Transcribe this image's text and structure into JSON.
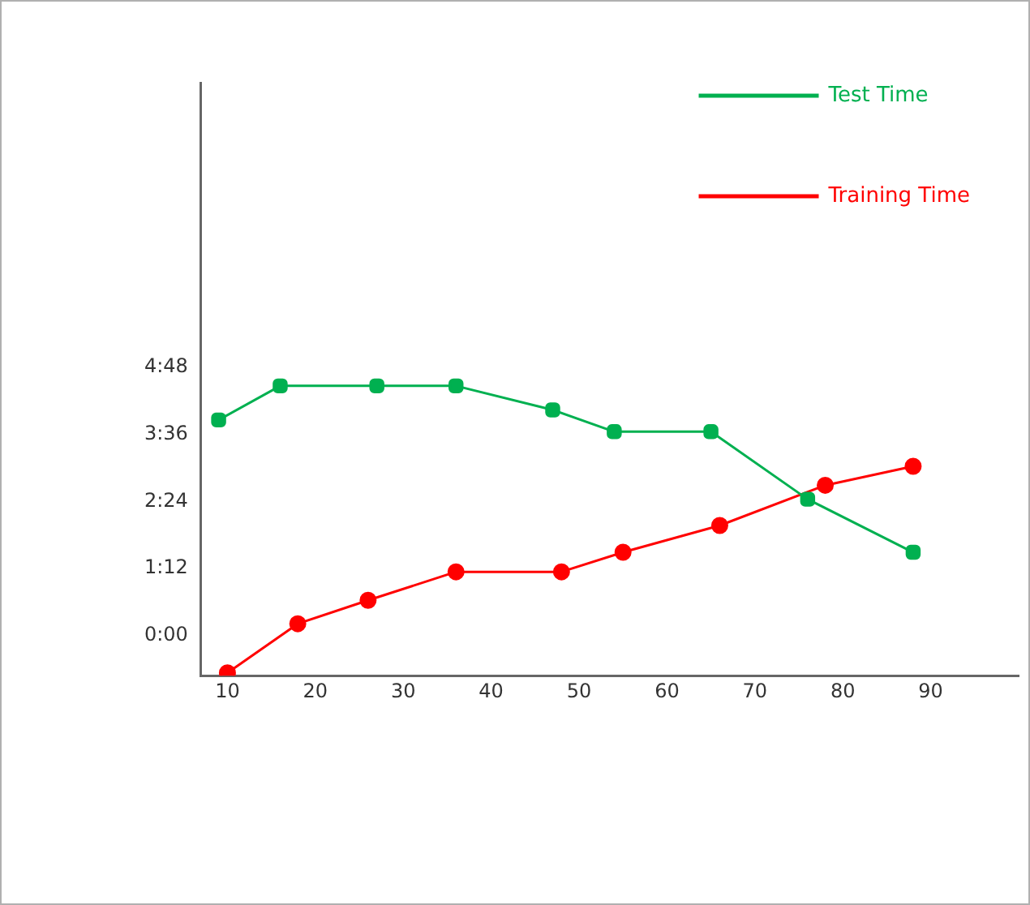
{
  "chart_data": {
    "type": "line",
    "series": [
      {
        "name": "Test Time",
        "color": "#00b050",
        "marker": "square",
        "x": [
          9,
          16,
          27,
          36,
          47,
          54,
          65,
          76,
          88
        ],
        "values": [
          3.86,
          4.47,
          4.47,
          4.47,
          4.04,
          3.65,
          3.65,
          2.44,
          1.49
        ]
      },
      {
        "name": "Training Time",
        "color": "#ff0000",
        "marker": "circle",
        "x": [
          10,
          18,
          26,
          36,
          48,
          55,
          66,
          78,
          88
        ],
        "values": [
          -0.67,
          0.21,
          0.63,
          1.14,
          1.14,
          1.49,
          1.97,
          2.69,
          3.03
        ]
      }
    ],
    "xlim": [
      7,
      100
    ],
    "xticks": [
      10,
      20,
      30,
      40,
      50,
      60,
      70,
      80,
      90
    ],
    "ylim": [
      -0.72,
      9.9
    ],
    "yticks": [
      {
        "value": 0,
        "label": "0:00"
      },
      {
        "value": 1.2,
        "label": "1:12"
      },
      {
        "value": 2.4,
        "label": "2:24"
      },
      {
        "value": 3.6,
        "label": "3:36"
      },
      {
        "value": 4.8,
        "label": "4:48"
      }
    ],
    "grid": false,
    "legend": "top right"
  }
}
